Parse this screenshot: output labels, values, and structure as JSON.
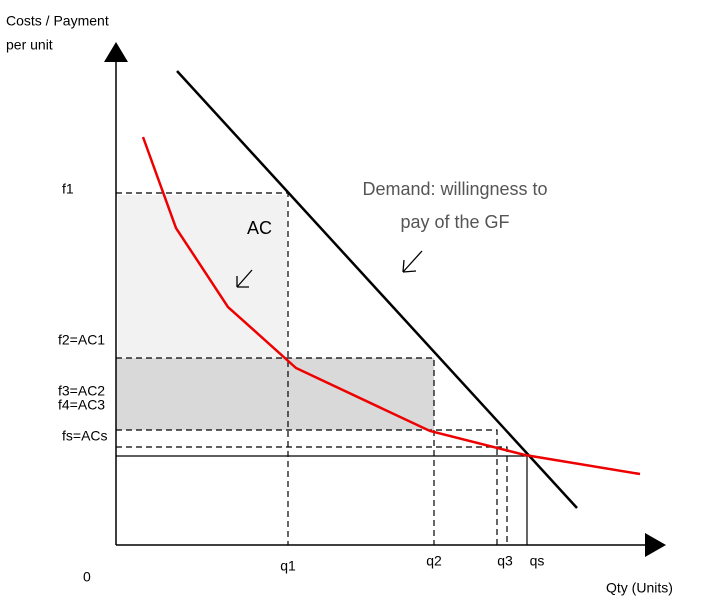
{
  "y_axis": {
    "label_line1": "Costs / Payment",
    "label_line2": "per unit"
  },
  "x_axis": {
    "label": "Qty (Units)",
    "origin": "0"
  },
  "y_labels": [
    "f1",
    "f2=AC1",
    "f3=AC2",
    "f4=AC3",
    "fs=ACs"
  ],
  "x_labels": [
    "q1",
    "q2",
    "q3",
    "qs"
  ],
  "annotations": {
    "ac": "AC",
    "demand_line1": "Demand: willingness to",
    "demand_line2": "pay of the GF"
  }
}
